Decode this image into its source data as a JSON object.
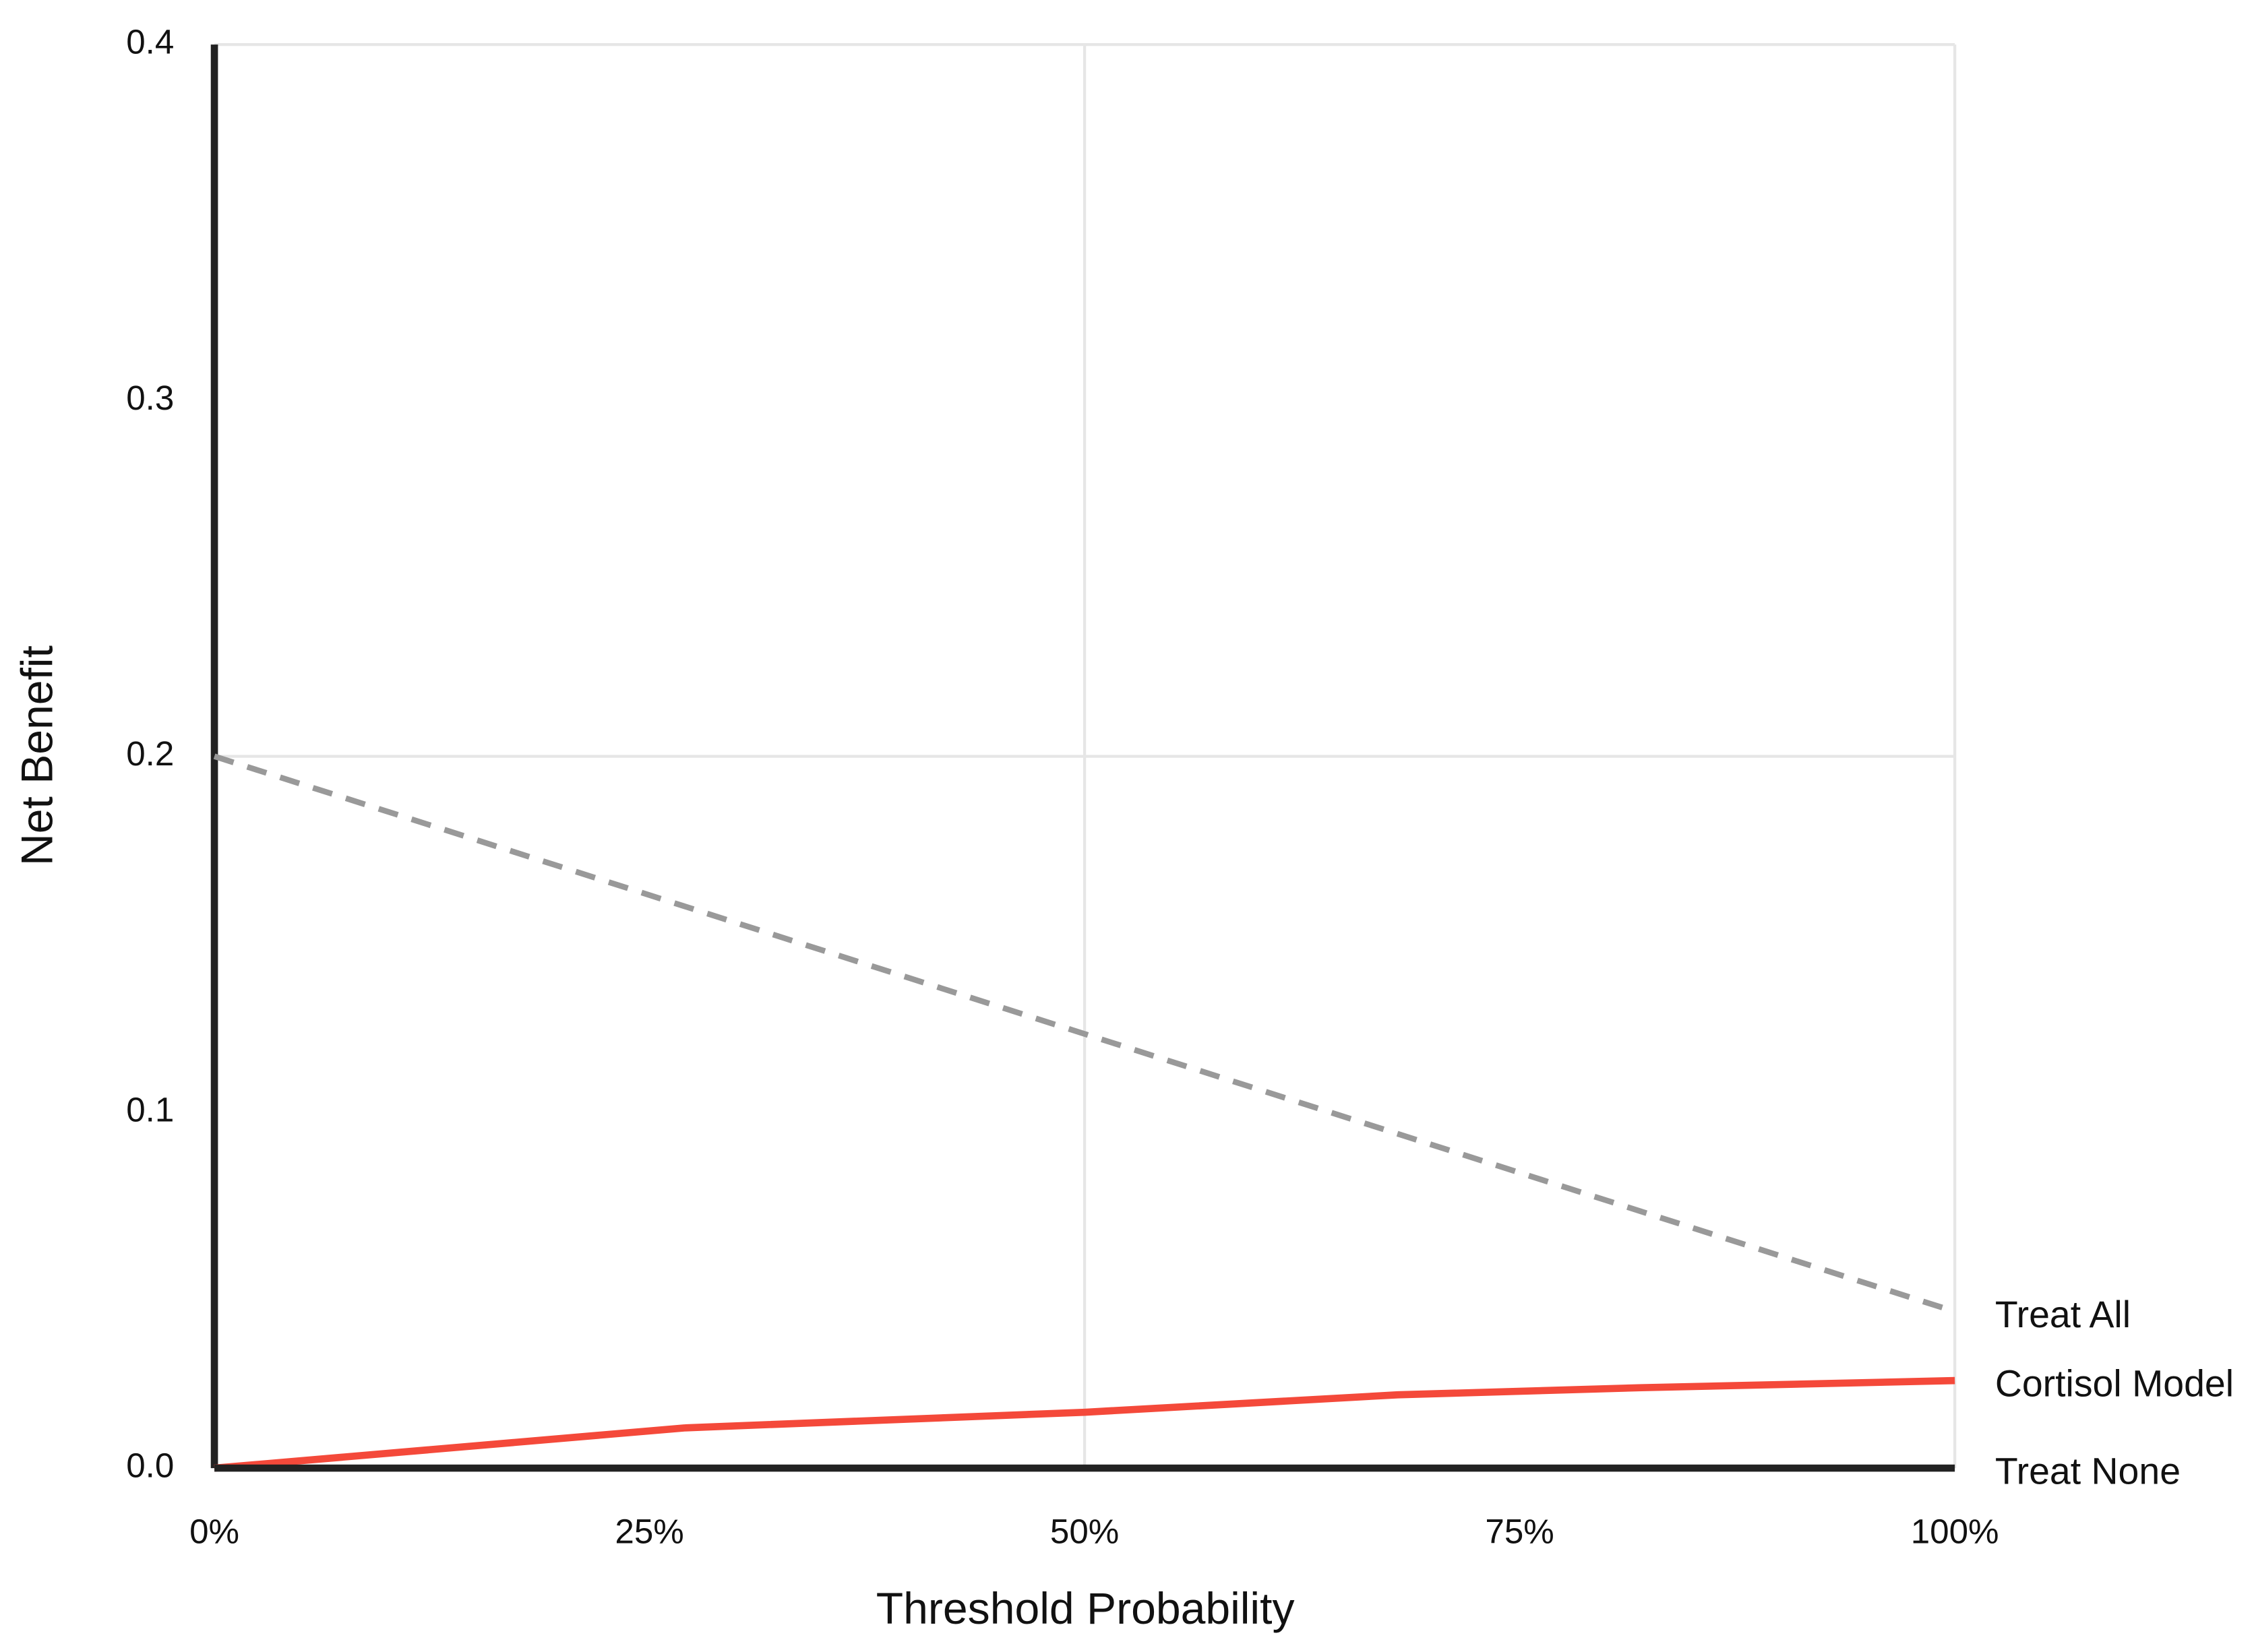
{
  "chart_data": {
    "type": "line",
    "xlabel": "Threshold Probability",
    "ylabel": "Net Benefit",
    "xlim": [
      0,
      100
    ],
    "xticks": [
      {
        "value": 0,
        "label": "0%"
      },
      {
        "value": 25,
        "label": "25%"
      },
      {
        "value": 50,
        "label": "50%"
      },
      {
        "value": 75,
        "label": "75%"
      },
      {
        "value": 100,
        "label": "100%"
      }
    ],
    "ylim": [
      0,
      0.4
    ],
    "yticks": [
      {
        "value": 0,
        "label": "0.0"
      },
      0.1,
      0.2,
      0.3,
      0.4
    ],
    "xgrid": [
      50,
      100
    ],
    "ygrid": [
      0.2,
      0.4
    ],
    "series": [
      {
        "name": "Treat All",
        "color": "#999999",
        "label_color": "#111111",
        "dashed": true,
        "x": [
          0,
          100
        ],
        "values": [
          0.2,
          0.044
        ]
      },
      {
        "name": "Cortisol Model",
        "color": "#f4493a",
        "label_color": "#f4493a",
        "dashed": false,
        "x": [
          0,
          27,
          50,
          68,
          82,
          100
        ],
        "values": [
          0,
          0.0113,
          0.0157,
          0.0206,
          0.0226,
          0.0246
        ]
      },
      {
        "name": "Treat None",
        "color": "#222222",
        "label_color": "#111111",
        "dashed": false,
        "x": [
          0,
          100
        ],
        "values": [
          0,
          0
        ]
      }
    ]
  }
}
